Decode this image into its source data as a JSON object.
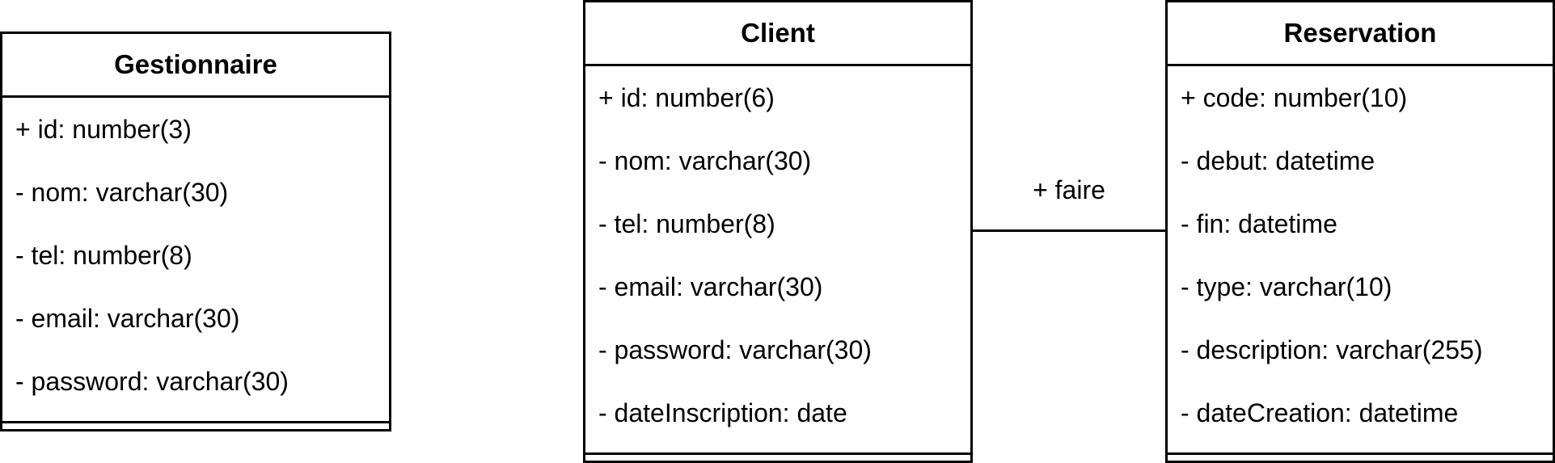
{
  "classes": {
    "gestionnaire": {
      "name": "Gestionnaire",
      "attributes": [
        "+ id: number(3)",
        "- nom: varchar(30)",
        "- tel: number(8)",
        "- email: varchar(30)",
        "- password: varchar(30)"
      ]
    },
    "client": {
      "name": "Client",
      "attributes": [
        "+ id: number(6)",
        "- nom: varchar(30)",
        "- tel: number(8)",
        "- email: varchar(30)",
        "- password: varchar(30)",
        "- dateInscription: date"
      ]
    },
    "reservation": {
      "name": "Reservation",
      "attributes": [
        "+ code: number(10)",
        "- debut: datetime",
        "- fin: datetime",
        "- type: varchar(10)",
        "- description: varchar(255)",
        "- dateCreation: datetime"
      ]
    }
  },
  "association": {
    "label": "+ faire"
  }
}
